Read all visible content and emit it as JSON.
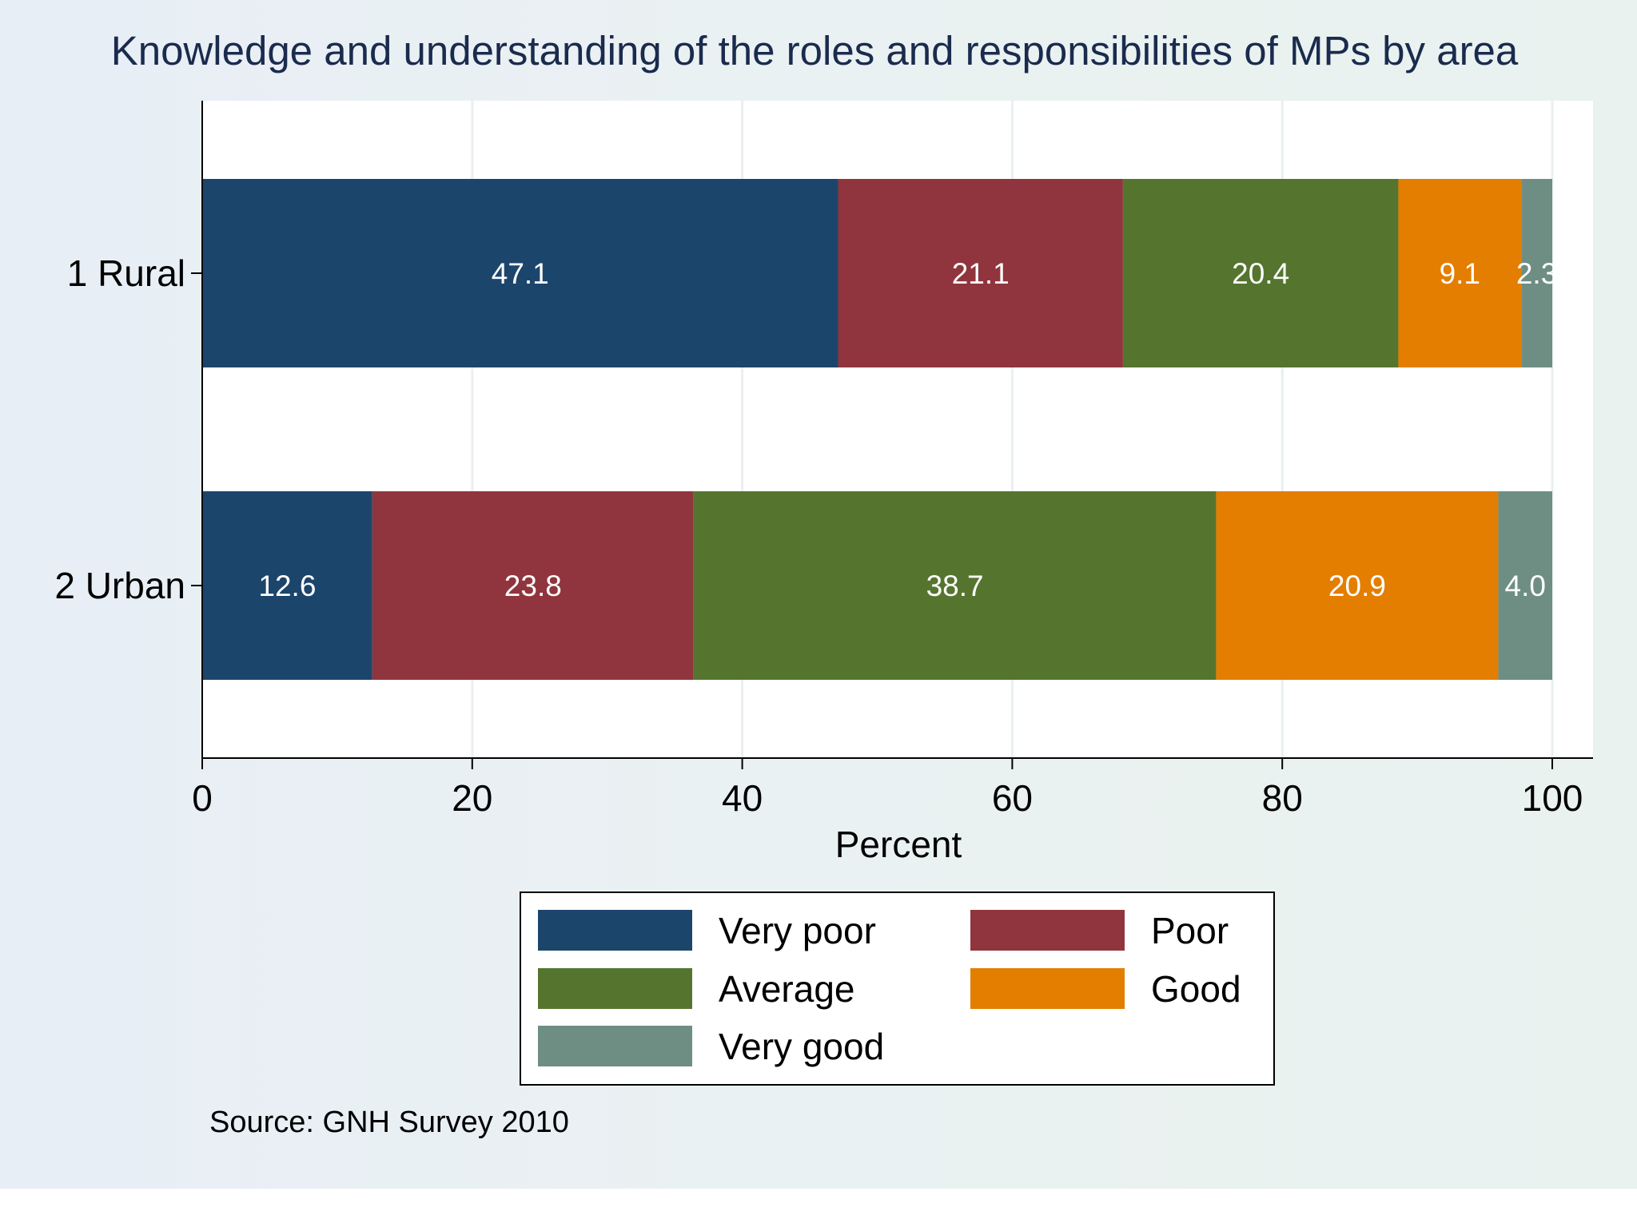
{
  "chart_data": {
    "type": "bar",
    "orientation": "horizontal",
    "stacked": true,
    "title": "Knowledge and understanding of the roles and responsibilities of MPs by area",
    "xlabel": "Percent",
    "ylabel": "",
    "xlim": [
      0,
      100
    ],
    "xticks": [
      0,
      20,
      40,
      60,
      80,
      100
    ],
    "grid": true,
    "legend_position": "bottom",
    "categories": [
      "1 Rural",
      "2 Urban"
    ],
    "series": [
      {
        "name": "Very poor",
        "color": "#1c456c",
        "values": [
          47.1,
          12.6
        ]
      },
      {
        "name": "Poor",
        "color": "#90353d",
        "values": [
          21.1,
          23.8
        ]
      },
      {
        "name": "Average",
        "color": "#55752f",
        "values": [
          20.4,
          38.7
        ]
      },
      {
        "name": "Good",
        "color": "#e37e00",
        "values": [
          9.1,
          20.9
        ]
      },
      {
        "name": "Very good",
        "color": "#6e8e84",
        "values": [
          2.3,
          4.0
        ]
      }
    ],
    "data_labels": [
      [
        "47.1",
        "21.1",
        "20.4",
        "9.1",
        "2.3"
      ],
      [
        "12.6",
        "23.8",
        "38.7",
        "20.9",
        "4.0"
      ]
    ],
    "note": "Source: GNH Survey 2010"
  }
}
